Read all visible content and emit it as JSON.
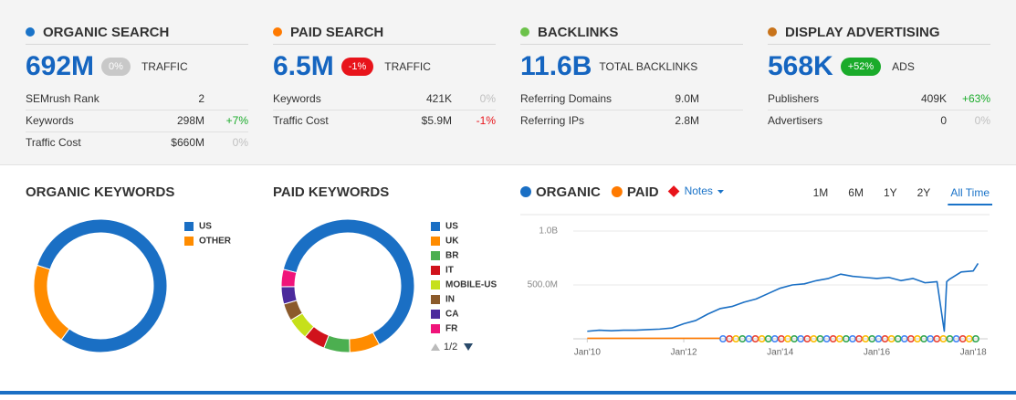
{
  "metrics": [
    {
      "title": "ORGANIC SEARCH",
      "color": "#1a73c8",
      "value": "692M",
      "badge": "0%",
      "badge_color": "#c8c8c8",
      "unit": "TRAFFIC",
      "rows": [
        {
          "label": "SEMrush Rank",
          "value": "2"
        },
        {
          "label": "Keywords",
          "value": "298M",
          "change": "+7%"
        },
        {
          "label": "Traffic Cost",
          "value": "$660M",
          "change": "0%"
        }
      ]
    },
    {
      "title": "PAID SEARCH",
      "color": "#ff7a00",
      "value": "6.5M",
      "badge": "-1%",
      "badge_color": "#e8141b",
      "unit": "TRAFFIC",
      "rows": [
        {
          "label": "Keywords",
          "value": "421K",
          "change": "0%"
        },
        {
          "label": "Traffic Cost",
          "value": "$5.9M",
          "change": "-1%"
        }
      ]
    },
    {
      "title": "BACKLINKS",
      "color": "#6cc24a",
      "value": "11.6B",
      "unit": "TOTAL BACKLINKS",
      "rows": [
        {
          "label": "Referring Domains",
          "value": "9.0M"
        },
        {
          "label": "Referring IPs",
          "value": "2.8M"
        }
      ]
    },
    {
      "title": "DISPLAY ADVERTISING",
      "color": "#c8731a",
      "value": "568K",
      "badge": "+52%",
      "badge_color": "#1aab2a",
      "unit": "ADS",
      "rows": [
        {
          "label": "Publishers",
          "value": "409K",
          "change": "+63%"
        },
        {
          "label": "Advertisers",
          "value": "0",
          "change": "0%"
        }
      ]
    }
  ],
  "organic_keywords": {
    "type": "donut",
    "title": "ORGANIC KEYWORDS",
    "categories": [
      "US",
      "OTHER"
    ],
    "values": [
      80,
      20
    ],
    "colors": [
      "#1a6fc4",
      "#ff8c00"
    ]
  },
  "paid_keywords": {
    "type": "donut",
    "title": "PAID KEYWORDS",
    "categories": [
      "US",
      "UK",
      "BR",
      "IT",
      "MOBILE-US",
      "IN",
      "CA",
      "FR"
    ],
    "values": [
      60,
      7,
      6,
      5,
      5,
      4,
      4,
      4
    ],
    "colors": [
      "#1a6fc4",
      "#ff8c00",
      "#4caf50",
      "#d0121b",
      "#c6e01a",
      "#8b5a2b",
      "#4b2a9c",
      "#f0147a"
    ],
    "pager": "1/2"
  },
  "trend": {
    "type": "line",
    "legend": [
      {
        "name": "ORGANIC",
        "color": "#1a6fc4"
      },
      {
        "name": "PAID",
        "color": "#ff7a00"
      }
    ],
    "notes": "Notes",
    "ranges": [
      "1M",
      "6M",
      "1Y",
      "2Y",
      "All Time"
    ],
    "active_range": 4,
    "xlim": [
      2009.71,
      2018.3
    ],
    "ylim": [
      0,
      1000
    ],
    "xticks": [
      {
        "value": 2010,
        "label": "Jan'10"
      },
      {
        "value": 2012,
        "label": "Jan'12"
      },
      {
        "value": 2014,
        "label": "Jan'14"
      },
      {
        "value": 2016,
        "label": "Jan'16"
      },
      {
        "value": 2018,
        "label": "Jan'18"
      }
    ],
    "yticks": [
      {
        "value": 1000,
        "label": "1.0B"
      },
      {
        "value": 500,
        "label": "500.0M"
      }
    ],
    "series": [
      {
        "name": "ORGANIC",
        "color": "#1a6fc4",
        "x": [
          2010,
          2010.25,
          2010.5,
          2010.75,
          2011,
          2011.25,
          2011.5,
          2011.75,
          2012,
          2012.25,
          2012.5,
          2012.75,
          2013,
          2013.25,
          2013.5,
          2013.75,
          2014,
          2014.25,
          2014.5,
          2014.75,
          2015,
          2015.25,
          2015.5,
          2015.75,
          2016,
          2016.25,
          2016.5,
          2016.75,
          2017,
          2017.25,
          2017.4,
          2017.45,
          2017.5,
          2017.75,
          2018,
          2018.1
        ],
        "values": [
          70,
          80,
          75,
          80,
          80,
          85,
          90,
          100,
          140,
          170,
          230,
          280,
          300,
          340,
          370,
          420,
          470,
          500,
          510,
          540,
          560,
          600,
          580,
          570,
          560,
          570,
          540,
          560,
          520,
          530,
          70,
          530,
          550,
          620,
          630,
          700
        ]
      },
      {
        "name": "PAID",
        "color": "#ff7a00",
        "x": [
          2010,
          2010.5,
          2011,
          2011.5,
          2012,
          2012.5,
          2012.75
        ],
        "values": [
          5,
          5,
          5,
          5,
          5,
          5,
          5
        ]
      }
    ]
  }
}
